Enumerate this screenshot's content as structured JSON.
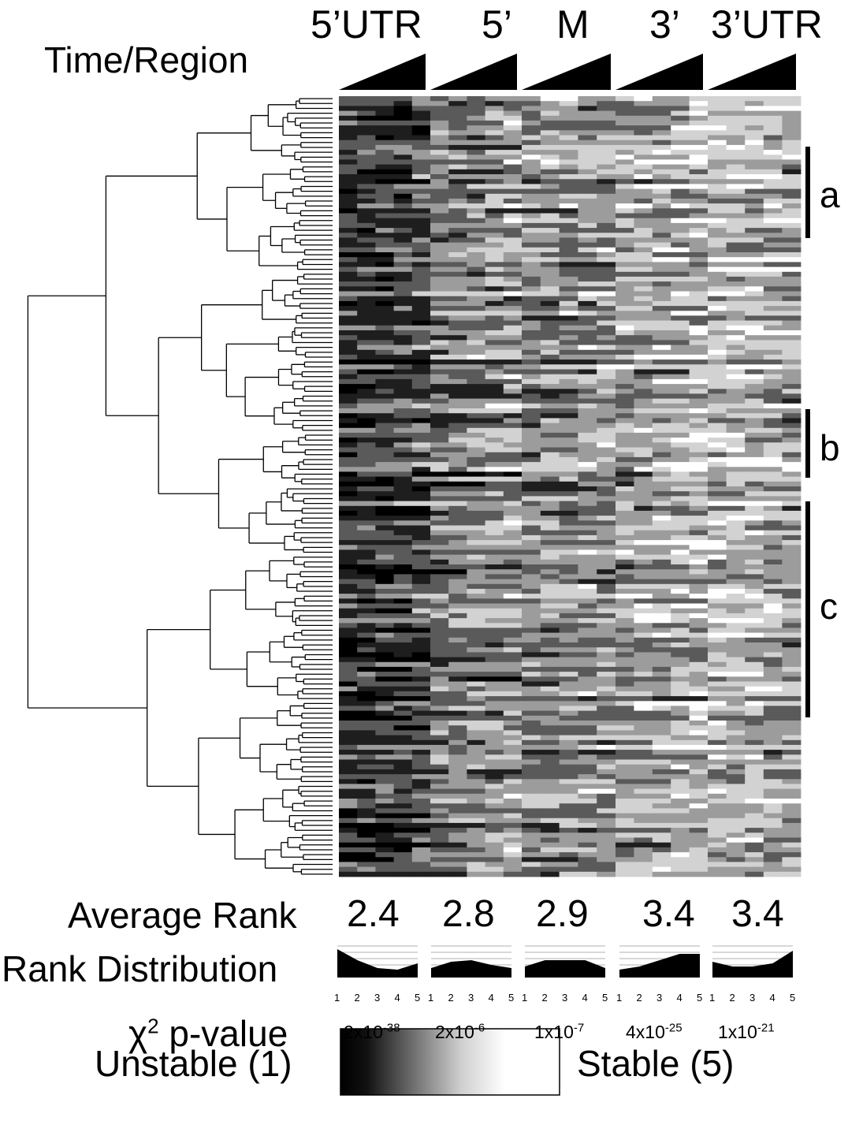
{
  "header": {
    "row_label": "Time/Region",
    "regions": [
      "5’UTR",
      "5’",
      "M",
      "3’",
      "3’UTR"
    ]
  },
  "clusters": [
    "a",
    "b",
    "c"
  ],
  "summary": {
    "avg_rank_label": "Average Rank",
    "avg_ranks": [
      "2.4",
      "2.8",
      "2.9",
      "3.4",
      "3.4"
    ],
    "rank_dist_label": "Rank Distribution",
    "rank_ticks": [
      "1",
      "2",
      "3",
      "4",
      "5"
    ],
    "pvalue_label_symbol": "χ",
    "pvalue_label_sup": "2",
    "pvalue_label_rest": " p-value",
    "pvalues": [
      {
        "base": "2x10",
        "exp": "-38"
      },
      {
        "base": "2x10",
        "exp": "-6"
      },
      {
        "base": "1x10",
        "exp": "-7"
      },
      {
        "base": "4x10",
        "exp": "-25"
      },
      {
        "base": "1x10",
        "exp": "-21"
      }
    ]
  },
  "legend": {
    "left_label": "Unstable (1)",
    "right_label": "Stable (5)"
  },
  "chart_data": {
    "type": "heatmap",
    "rows": 160,
    "columns_per_region": 5,
    "value_scale": [
      1,
      5
    ],
    "avg_rank": [
      2.4,
      2.8,
      2.9,
      3.4,
      3.4
    ],
    "rank_distribution_profiles": [
      [
        0.9,
        0.55,
        0.3,
        0.25,
        0.45
      ],
      [
        0.3,
        0.5,
        0.55,
        0.4,
        0.3
      ],
      [
        0.35,
        0.55,
        0.55,
        0.55,
        0.3
      ],
      [
        0.25,
        0.35,
        0.55,
        0.75,
        0.75
      ],
      [
        0.5,
        0.35,
        0.35,
        0.45,
        0.85
      ]
    ],
    "region_bias": [
      [
        1.3,
        1.4,
        1.5,
        1.7,
        2.0
      ],
      [
        2.3,
        2.5,
        2.7,
        2.9,
        3.2
      ],
      [
        2.6,
        2.8,
        2.9,
        3.0,
        3.2
      ],
      [
        3.0,
        3.2,
        3.4,
        3.6,
        3.8
      ],
      [
        3.6,
        3.5,
        3.3,
        3.1,
        3.0
      ]
    ]
  }
}
